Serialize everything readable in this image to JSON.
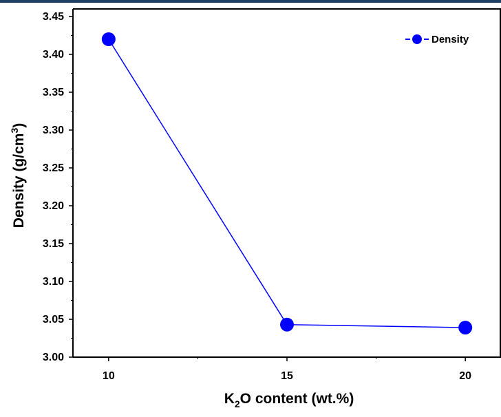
{
  "header_color": "#1f3f66",
  "chart_data": {
    "type": "line",
    "x": [
      10,
      15,
      20
    ],
    "x_ticks": [
      "10",
      "15",
      "20"
    ],
    "xlim": [
      9,
      21
    ],
    "ylim": [
      3.0,
      3.46
    ],
    "y_ticks": [
      "3.00",
      "3.05",
      "3.10",
      "3.15",
      "3.20",
      "3.25",
      "3.30",
      "3.35",
      "3.40",
      "3.45"
    ],
    "series": [
      {
        "name": "Density",
        "values": [
          3.42,
          3.043,
          3.039
        ],
        "color": "#0000ff",
        "marker": "circle"
      }
    ],
    "xlabel": {
      "prefix": "K",
      "sub": "2",
      "suffix": "O content (wt.%)"
    },
    "ylabel": {
      "main": "Density (g/cm",
      "sup": "3",
      "close": ")"
    },
    "legend_position": "top-right",
    "grid": false
  }
}
